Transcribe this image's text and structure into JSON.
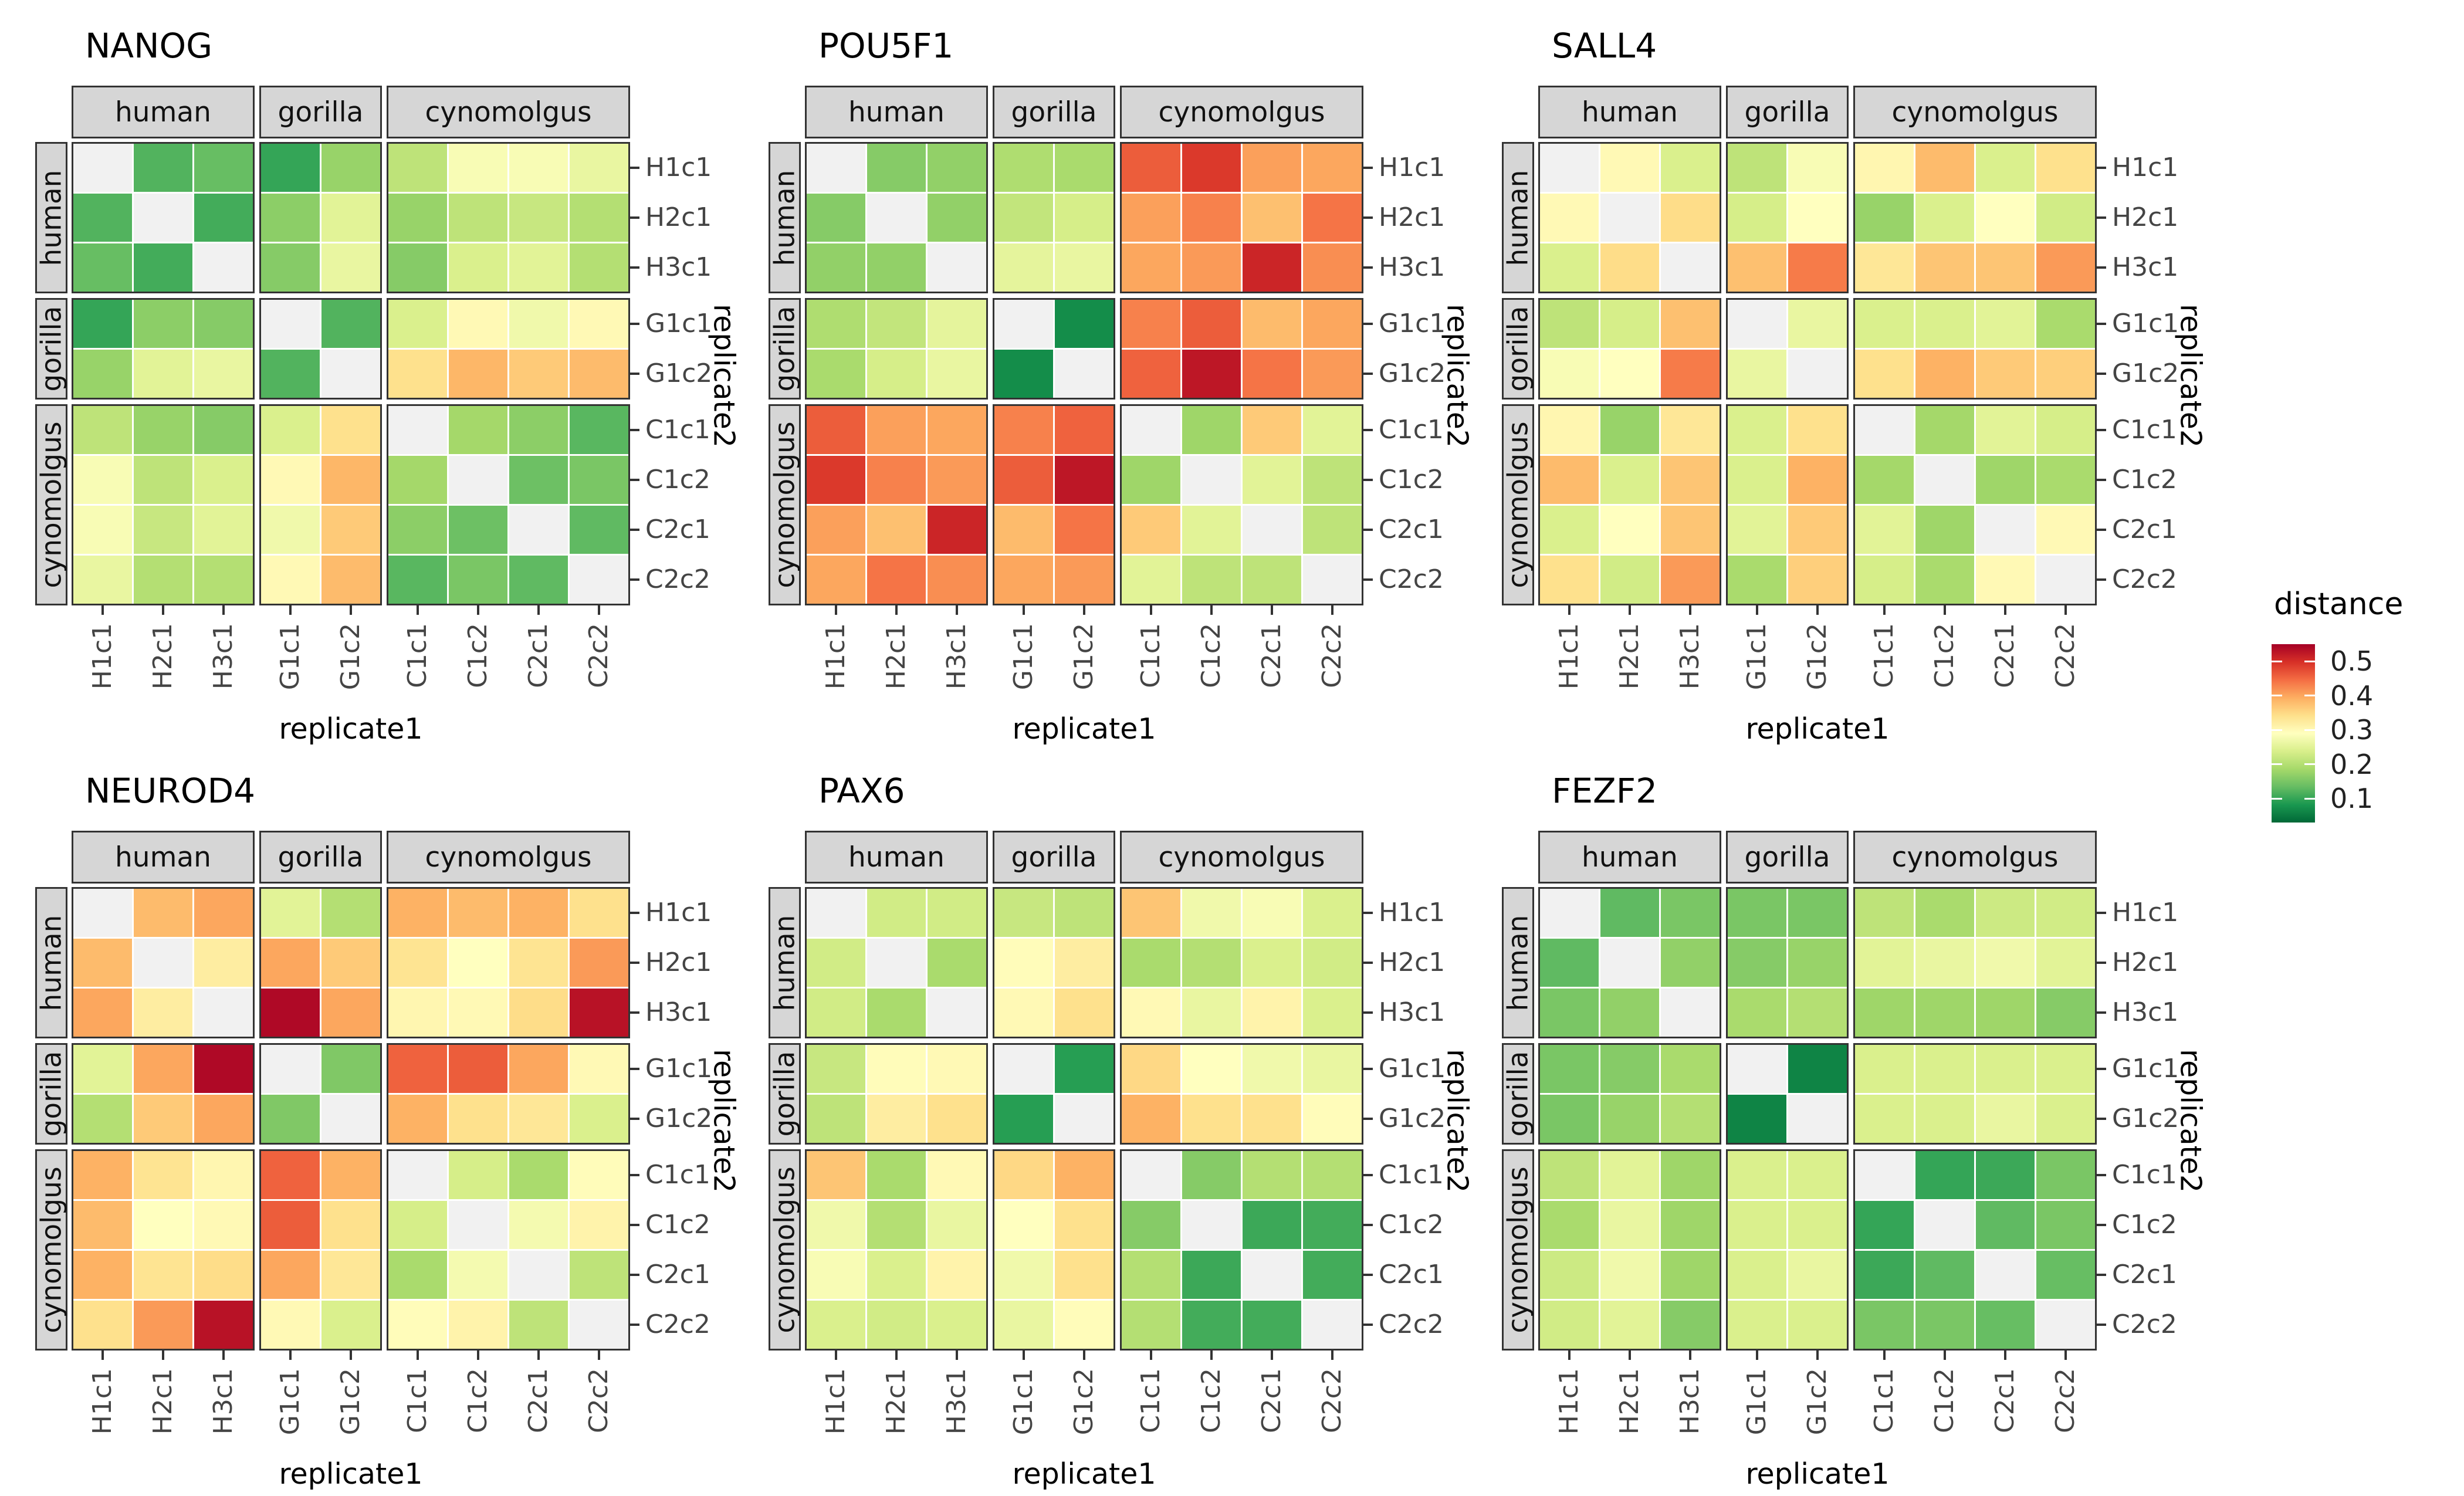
{
  "chart_data": {
    "type": "heatmap",
    "xlabel": "replicate1",
    "ylabel": "replicate2",
    "labels": [
      "H1c1",
      "H2c1",
      "H3c1",
      "G1c1",
      "G1c2",
      "C1c1",
      "C1c2",
      "C2c1",
      "C2c2"
    ],
    "groups": [
      {
        "label": "human",
        "span": 3
      },
      {
        "label": "gorilla",
        "span": 2
      },
      {
        "label": "cynomolgus",
        "span": 4
      }
    ],
    "legend": {
      "title": "distance",
      "tick_labels": [
        "0.5",
        "0.4",
        "0.3",
        "0.2",
        "0.1"
      ],
      "tick_values": [
        0.5,
        0.4,
        0.3,
        0.2,
        0.1
      ],
      "domain": [
        0.03,
        0.55
      ]
    },
    "colormap": {
      "name": "RdYlGn-reversed",
      "stops_low_to_high": [
        "#006837",
        "#1a9850",
        "#66bd63",
        "#a6d96a",
        "#d9ef8b",
        "#ffffbf",
        "#fee08b",
        "#fdae61",
        "#f46d43",
        "#d73027",
        "#a50026"
      ],
      "na_color": "#f1f1f1",
      "strip_color": "#d6d6d6"
    },
    "facets": [
      {
        "title": "NANOG",
        "matrix": [
          [
            null,
            0.12,
            0.135,
            0.1,
            0.175,
            0.21,
            0.28,
            0.28,
            0.26
          ],
          [
            0.12,
            null,
            0.11,
            0.165,
            0.25,
            0.175,
            0.21,
            0.22,
            0.2
          ],
          [
            0.135,
            0.11,
            null,
            0.16,
            0.26,
            0.16,
            0.24,
            0.25,
            0.2
          ],
          [
            0.1,
            0.165,
            0.16,
            null,
            0.12,
            0.24,
            0.3,
            0.27,
            0.3
          ],
          [
            0.175,
            0.25,
            0.26,
            0.12,
            null,
            0.34,
            0.385,
            0.365,
            0.38
          ],
          [
            0.21,
            0.175,
            0.16,
            0.24,
            0.34,
            null,
            0.185,
            0.165,
            0.125
          ],
          [
            0.28,
            0.21,
            0.24,
            0.3,
            0.385,
            0.185,
            null,
            0.14,
            0.15
          ],
          [
            0.28,
            0.22,
            0.25,
            0.27,
            0.365,
            0.165,
            0.14,
            null,
            0.13
          ],
          [
            0.26,
            0.2,
            0.2,
            0.3,
            0.38,
            0.125,
            0.15,
            0.13,
            null
          ]
        ]
      },
      {
        "title": "POU5F1",
        "matrix": [
          [
            null,
            0.16,
            0.17,
            0.195,
            0.19,
            0.46,
            0.49,
            0.405,
            0.4
          ],
          [
            0.16,
            null,
            0.17,
            0.215,
            0.235,
            0.405,
            0.43,
            0.375,
            0.44
          ],
          [
            0.17,
            0.17,
            null,
            0.255,
            0.26,
            0.4,
            0.41,
            0.51,
            0.42
          ],
          [
            0.195,
            0.215,
            0.255,
            null,
            0.07,
            0.43,
            0.46,
            0.38,
            0.4
          ],
          [
            0.19,
            0.235,
            0.26,
            0.07,
            null,
            0.455,
            0.525,
            0.44,
            0.41
          ],
          [
            0.46,
            0.405,
            0.4,
            0.43,
            0.455,
            null,
            0.18,
            0.365,
            0.25
          ],
          [
            0.49,
            0.43,
            0.41,
            0.46,
            0.525,
            0.18,
            null,
            0.25,
            0.21
          ],
          [
            0.405,
            0.375,
            0.51,
            0.38,
            0.44,
            0.365,
            0.25,
            null,
            0.21
          ],
          [
            0.4,
            0.44,
            0.42,
            0.4,
            0.41,
            0.25,
            0.21,
            0.21,
            null
          ]
        ]
      },
      {
        "title": "SALL4",
        "matrix": [
          [
            null,
            0.3,
            0.24,
            0.21,
            0.28,
            0.305,
            0.38,
            0.24,
            0.34
          ],
          [
            0.3,
            null,
            0.345,
            0.235,
            0.29,
            0.175,
            0.24,
            0.29,
            0.23
          ],
          [
            0.24,
            0.345,
            null,
            0.375,
            0.435,
            0.33,
            0.37,
            0.37,
            0.41
          ],
          [
            0.21,
            0.235,
            0.375,
            null,
            0.26,
            0.24,
            0.24,
            0.25,
            0.19
          ],
          [
            0.28,
            0.29,
            0.435,
            0.26,
            null,
            0.34,
            0.39,
            0.365,
            0.36
          ],
          [
            0.305,
            0.175,
            0.33,
            0.24,
            0.34,
            null,
            0.185,
            0.25,
            0.235
          ],
          [
            0.38,
            0.24,
            0.37,
            0.24,
            0.39,
            0.185,
            null,
            0.18,
            0.19
          ],
          [
            0.24,
            0.29,
            0.37,
            0.25,
            0.365,
            0.25,
            0.18,
            null,
            0.3
          ],
          [
            0.34,
            0.23,
            0.41,
            0.19,
            0.36,
            0.235,
            0.19,
            0.3,
            null
          ]
        ]
      },
      {
        "title": "NEUROD4",
        "matrix": [
          [
            null,
            0.38,
            0.4,
            0.25,
            0.2,
            0.39,
            0.38,
            0.39,
            0.34
          ],
          [
            0.38,
            null,
            0.32,
            0.4,
            0.365,
            0.335,
            0.29,
            0.335,
            0.41
          ],
          [
            0.4,
            0.32,
            null,
            0.54,
            0.4,
            0.305,
            0.3,
            0.345,
            0.53
          ],
          [
            0.25,
            0.4,
            0.54,
            null,
            0.155,
            0.455,
            0.46,
            0.4,
            0.3
          ],
          [
            0.2,
            0.365,
            0.4,
            0.155,
            null,
            0.39,
            0.34,
            0.33,
            0.24
          ],
          [
            0.39,
            0.335,
            0.305,
            0.455,
            0.39,
            null,
            0.235,
            0.19,
            0.295
          ],
          [
            0.38,
            0.29,
            0.3,
            0.46,
            0.34,
            0.235,
            null,
            0.275,
            0.31
          ],
          [
            0.39,
            0.335,
            0.345,
            0.4,
            0.33,
            0.19,
            0.275,
            null,
            0.21
          ],
          [
            0.34,
            0.41,
            0.53,
            0.3,
            0.24,
            0.295,
            0.31,
            0.21,
            null
          ]
        ]
      },
      {
        "title": "PAX6",
        "matrix": [
          [
            null,
            0.23,
            0.23,
            0.22,
            0.21,
            0.37,
            0.27,
            0.28,
            0.24
          ],
          [
            0.23,
            null,
            0.19,
            0.295,
            0.32,
            0.19,
            0.2,
            0.24,
            0.23
          ],
          [
            0.23,
            0.19,
            null,
            0.3,
            0.34,
            0.3,
            0.26,
            0.31,
            0.24
          ],
          [
            0.22,
            0.295,
            0.3,
            null,
            0.09,
            0.35,
            0.29,
            0.27,
            0.26
          ],
          [
            0.21,
            0.32,
            0.34,
            0.09,
            null,
            0.39,
            0.34,
            0.34,
            0.295
          ],
          [
            0.37,
            0.19,
            0.3,
            0.35,
            0.39,
            null,
            0.16,
            0.2,
            0.2
          ],
          [
            0.27,
            0.2,
            0.26,
            0.29,
            0.34,
            0.16,
            null,
            0.105,
            0.11
          ],
          [
            0.28,
            0.24,
            0.31,
            0.27,
            0.34,
            0.2,
            0.105,
            null,
            0.11
          ],
          [
            0.24,
            0.23,
            0.24,
            0.26,
            0.295,
            0.2,
            0.11,
            0.11,
            null
          ]
        ]
      },
      {
        "title": "FEZF2",
        "matrix": [
          [
            null,
            0.13,
            0.15,
            0.15,
            0.15,
            0.21,
            0.19,
            0.225,
            0.23
          ],
          [
            0.13,
            null,
            0.17,
            0.16,
            0.175,
            0.25,
            0.26,
            0.27,
            0.25
          ],
          [
            0.15,
            0.17,
            null,
            0.19,
            0.2,
            0.18,
            0.18,
            0.18,
            0.16
          ],
          [
            0.15,
            0.16,
            0.19,
            null,
            0.06,
            0.24,
            0.24,
            0.24,
            0.24
          ],
          [
            0.15,
            0.175,
            0.2,
            0.06,
            null,
            0.24,
            0.24,
            0.26,
            0.24
          ],
          [
            0.21,
            0.25,
            0.18,
            0.24,
            0.24,
            null,
            0.1,
            0.105,
            0.15
          ],
          [
            0.19,
            0.26,
            0.18,
            0.24,
            0.24,
            0.1,
            null,
            0.13,
            0.15
          ],
          [
            0.225,
            0.27,
            0.18,
            0.24,
            0.26,
            0.105,
            0.13,
            null,
            0.135
          ],
          [
            0.23,
            0.25,
            0.16,
            0.24,
            0.24,
            0.15,
            0.15,
            0.135,
            null
          ]
        ]
      }
    ]
  }
}
